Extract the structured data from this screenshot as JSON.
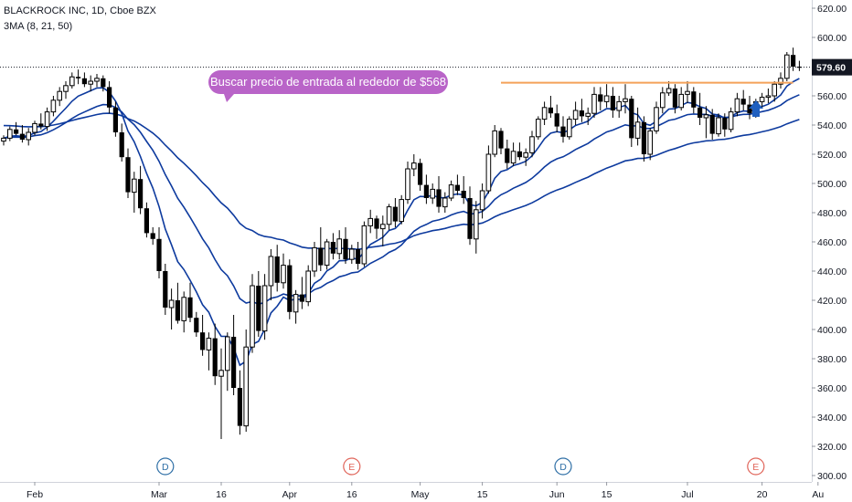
{
  "header": {
    "symbol_line": "BLACKROCK INC, 1D, Cboe BZX",
    "indicator_line": "3MA (8, 21, 50)"
  },
  "annotation": {
    "text": "Buscar precio de entrada al rededor de $568",
    "color": "#b964c8"
  },
  "colors": {
    "candle": "#000000",
    "ma": "#0d3a9e",
    "resistance": "#f4a259",
    "arrow": "#1f5fbf",
    "event_dividend": "#2f6fa6",
    "event_earnings": "#e0655a",
    "axis_text": "#131722",
    "price_badge": "#131722"
  },
  "chart_data": {
    "type": "candlestick",
    "title": "BLACKROCK INC, 1D, Cboe BZX",
    "indicator": "3MA (8, 21, 50)",
    "y_axis": {
      "range": [
        300,
        620
      ],
      "ticks": [
        "620.00",
        "600.00",
        "580.00",
        "560.00",
        "540.00",
        "520.00",
        "500.00",
        "480.00",
        "460.00",
        "440.00",
        "420.00",
        "400.00",
        "380.00",
        "360.00",
        "340.00",
        "320.00",
        "300.00"
      ]
    },
    "x_axis": {
      "ticks": [
        {
          "label": "Feb",
          "index": 5
        },
        {
          "label": "Mar",
          "index": 25
        },
        {
          "label": "16",
          "index": 35
        },
        {
          "label": "Apr",
          "index": 46
        },
        {
          "label": "16",
          "index": 56
        },
        {
          "label": "May",
          "index": 67
        },
        {
          "label": "15",
          "index": 77
        },
        {
          "label": "Jun",
          "index": 89
        },
        {
          "label": "15",
          "index": 97
        },
        {
          "label": "Jul",
          "index": 110
        },
        {
          "label": "20",
          "index": 122
        },
        {
          "label": "Au",
          "index": 131
        }
      ]
    },
    "last_price": "579.60",
    "current_price_value": 579.6,
    "resistance": {
      "value": 569,
      "from_index": 80,
      "to_index": 127
    },
    "events": [
      {
        "type": "dividend",
        "label": "D",
        "index": 26
      },
      {
        "type": "earnings",
        "label": "E",
        "index": 56
      },
      {
        "type": "dividend",
        "label": "D",
        "index": 90
      },
      {
        "type": "earnings",
        "label": "E",
        "index": 121
      }
    ],
    "candles": [
      [
        529,
        533,
        526,
        531
      ],
      [
        531,
        539,
        529,
        537
      ],
      [
        537,
        542,
        533,
        534
      ],
      [
        534,
        540,
        528,
        530
      ],
      [
        530,
        538,
        526,
        535
      ],
      [
        535,
        543,
        533,
        541
      ],
      [
        541,
        548,
        537,
        539
      ],
      [
        539,
        552,
        536,
        549
      ],
      [
        549,
        560,
        546,
        557
      ],
      [
        557,
        566,
        553,
        563
      ],
      [
        563,
        570,
        558,
        567
      ],
      [
        567,
        576,
        565,
        573
      ],
      [
        573,
        578,
        568,
        572
      ],
      [
        572,
        576,
        566,
        568
      ],
      [
        568,
        574,
        563,
        570
      ],
      [
        570,
        575,
        566,
        572
      ],
      [
        572,
        574,
        563,
        566
      ],
      [
        566,
        570,
        548,
        552
      ],
      [
        552,
        556,
        532,
        535
      ],
      [
        535,
        541,
        515,
        518
      ],
      [
        518,
        524,
        490,
        494
      ],
      [
        494,
        508,
        480,
        503
      ],
      [
        503,
        512,
        479,
        483
      ],
      [
        483,
        487,
        463,
        466
      ],
      [
        466,
        470,
        458,
        462
      ],
      [
        462,
        470,
        435,
        440
      ],
      [
        440,
        445,
        410,
        415
      ],
      [
        415,
        428,
        400,
        420
      ],
      [
        420,
        432,
        404,
        406
      ],
      [
        406,
        426,
        398,
        422
      ],
      [
        422,
        432,
        405,
        408
      ],
      [
        408,
        412,
        395,
        398
      ],
      [
        398,
        410,
        382,
        386
      ],
      [
        386,
        398,
        372,
        394
      ],
      [
        394,
        404,
        362,
        368
      ],
      [
        368,
        387,
        325,
        372
      ],
      [
        372,
        398,
        358,
        395
      ],
      [
        395,
        410,
        355,
        360
      ],
      [
        360,
        372,
        328,
        334
      ],
      [
        334,
        400,
        330,
        388
      ],
      [
        388,
        438,
        384,
        430
      ],
      [
        430,
        440,
        395,
        399
      ],
      [
        399,
        438,
        393,
        430
      ],
      [
        430,
        455,
        420,
        450
      ],
      [
        450,
        458,
        426,
        432
      ],
      [
        432,
        452,
        428,
        444
      ],
      [
        444,
        448,
        407,
        412
      ],
      [
        412,
        427,
        404,
        424
      ],
      [
        424,
        436,
        414,
        419
      ],
      [
        419,
        444,
        416,
        440
      ],
      [
        440,
        460,
        436,
        456
      ],
      [
        456,
        470,
        440,
        444
      ],
      [
        444,
        462,
        441,
        460
      ],
      [
        460,
        466,
        448,
        452
      ],
      [
        452,
        468,
        448,
        462
      ],
      [
        462,
        470,
        445,
        448
      ],
      [
        448,
        458,
        445,
        455
      ],
      [
        455,
        460,
        441,
        445
      ],
      [
        445,
        474,
        443,
        471
      ],
      [
        471,
        482,
        466,
        476
      ],
      [
        476,
        478,
        462,
        469
      ],
      [
        469,
        478,
        457,
        472
      ],
      [
        472,
        486,
        468,
        484
      ],
      [
        484,
        490,
        470,
        474
      ],
      [
        474,
        492,
        472,
        489
      ],
      [
        489,
        515,
        486,
        510
      ],
      [
        510,
        520,
        505,
        514
      ],
      [
        514,
        517,
        495,
        499
      ],
      [
        499,
        506,
        486,
        490
      ],
      [
        490,
        500,
        486,
        496
      ],
      [
        496,
        505,
        480,
        484
      ],
      [
        484,
        494,
        480,
        490
      ],
      [
        490,
        502,
        488,
        499
      ],
      [
        499,
        506,
        492,
        495
      ],
      [
        495,
        505,
        486,
        490
      ],
      [
        490,
        498,
        458,
        462
      ],
      [
        462,
        488,
        452,
        482
      ],
      [
        482,
        500,
        476,
        495
      ],
      [
        495,
        526,
        493,
        520
      ],
      [
        520,
        540,
        518,
        536
      ],
      [
        536,
        538,
        520,
        524
      ],
      [
        524,
        530,
        510,
        514
      ],
      [
        514,
        528,
        512,
        522
      ],
      [
        522,
        528,
        516,
        518
      ],
      [
        518,
        524,
        512,
        521
      ],
      [
        521,
        536,
        518,
        532
      ],
      [
        532,
        546,
        530,
        544
      ],
      [
        544,
        556,
        540,
        552
      ],
      [
        552,
        560,
        545,
        548
      ],
      [
        548,
        554,
        535,
        539
      ],
      [
        539,
        546,
        528,
        532
      ],
      [
        532,
        546,
        530,
        544
      ],
      [
        544,
        556,
        540,
        550
      ],
      [
        550,
        558,
        542,
        546
      ],
      [
        546,
        552,
        540,
        548
      ],
      [
        548,
        566,
        545,
        561
      ],
      [
        561,
        566,
        550,
        556
      ],
      [
        556,
        568,
        552,
        560
      ],
      [
        560,
        566,
        545,
        550
      ],
      [
        550,
        560,
        545,
        556
      ],
      [
        556,
        568,
        548,
        558
      ],
      [
        558,
        560,
        525,
        531
      ],
      [
        531,
        552,
        526,
        542
      ],
      [
        542,
        546,
        515,
        520
      ],
      [
        520,
        538,
        516,
        536
      ],
      [
        536,
        556,
        534,
        552
      ],
      [
        552,
        566,
        548,
        562
      ],
      [
        562,
        570,
        560,
        565
      ],
      [
        565,
        568,
        548,
        552
      ],
      [
        552,
        566,
        550,
        561
      ],
      [
        561,
        570,
        555,
        563
      ],
      [
        563,
        566,
        548,
        552
      ],
      [
        552,
        562,
        540,
        545
      ],
      [
        545,
        553,
        531,
        547
      ],
      [
        547,
        551,
        530,
        534
      ],
      [
        534,
        548,
        532,
        545
      ],
      [
        545,
        548,
        532,
        537
      ],
      [
        537,
        552,
        535,
        549
      ],
      [
        549,
        562,
        546,
        558
      ],
      [
        558,
        564,
        550,
        554
      ],
      [
        554,
        560,
        544,
        548
      ],
      [
        548,
        558,
        545,
        556
      ],
      [
        556,
        562,
        552,
        559
      ],
      [
        559,
        565,
        555,
        560
      ],
      [
        560,
        570,
        556,
        568
      ],
      [
        568,
        576,
        565,
        572
      ],
      [
        572,
        590,
        570,
        588
      ],
      [
        588,
        593,
        577,
        580
      ],
      [
        580,
        584,
        577,
        579.6
      ]
    ]
  }
}
